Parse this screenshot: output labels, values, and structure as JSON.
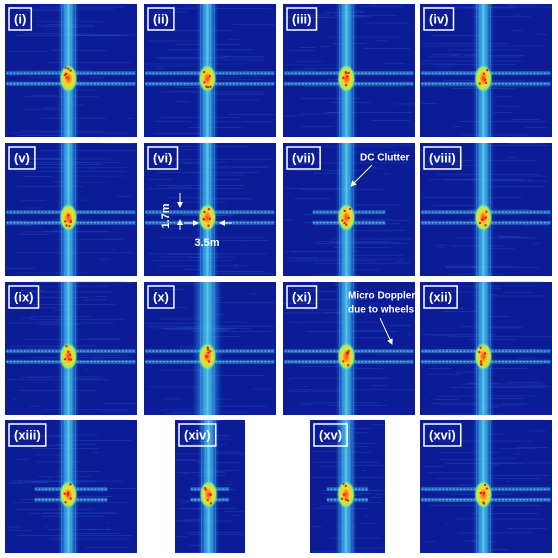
{
  "panels": [
    {
      "label": "(i)"
    },
    {
      "label": "(ii)"
    },
    {
      "label": "(iii)"
    },
    {
      "label": "(iv)"
    },
    {
      "label": "(v)"
    },
    {
      "label": "(vi)"
    },
    {
      "label": "(vii)"
    },
    {
      "label": "(viii)"
    },
    {
      "label": "(ix)"
    },
    {
      "label": "(x)"
    },
    {
      "label": "(xi)"
    },
    {
      "label": "(xii)"
    },
    {
      "label": "(xiii)"
    },
    {
      "label": "(xiv)"
    },
    {
      "label": "(xv)"
    },
    {
      "label": "(xvi)"
    }
  ],
  "annotations": {
    "height": "1.7m",
    "width": "3.5m",
    "dc_clutter": "DC Clutter",
    "micro_doppler": [
      "Micro Doppler",
      "due to  wheels"
    ]
  }
}
